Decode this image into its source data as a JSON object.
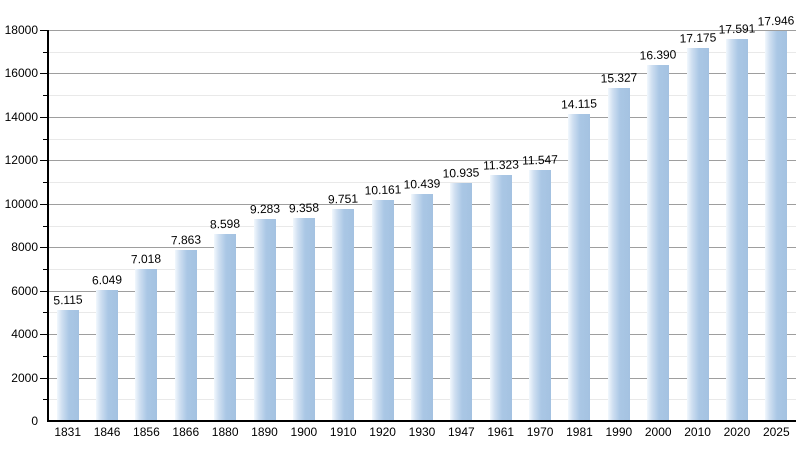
{
  "chart_data": {
    "type": "bar",
    "title": "",
    "xlabel": "",
    "ylabel": "",
    "categories": [
      "1831",
      "1846",
      "1856",
      "1866",
      "1880",
      "1890",
      "1900",
      "1910",
      "1920",
      "1930",
      "1947",
      "1961",
      "1970",
      "1981",
      "1990",
      "2000",
      "2010",
      "2020",
      "2025"
    ],
    "values": [
      5115,
      6049,
      7018,
      7863,
      8598,
      9283,
      9358,
      9751,
      10161,
      10439,
      10935,
      11323,
      11547,
      14115,
      15327,
      16390,
      17175,
      17591,
      17946
    ],
    "value_labels": [
      "5.115",
      "6.049",
      "7.018",
      "7.863",
      "8.598",
      "9.283",
      "9.358",
      "9.751",
      "10.161",
      "10.439",
      "10.935",
      "11.323",
      "11.547",
      "14.115",
      "15.327",
      "16.390",
      "17.175",
      "17.591",
      "17.946"
    ],
    "ylim": [
      0,
      18000
    ],
    "ytick_major_step": 2000,
    "ytick_minor_step": 1000,
    "grid": "on",
    "legend": "none",
    "colors": {
      "bar": "#a4c2e1",
      "bar_highlight": "#f2f8fd",
      "grid_major": "#9e9e9e",
      "grid_minor": "#e9e9e9",
      "axis": "#000000",
      "label_text": "#000000",
      "background": "#ffffff"
    }
  }
}
